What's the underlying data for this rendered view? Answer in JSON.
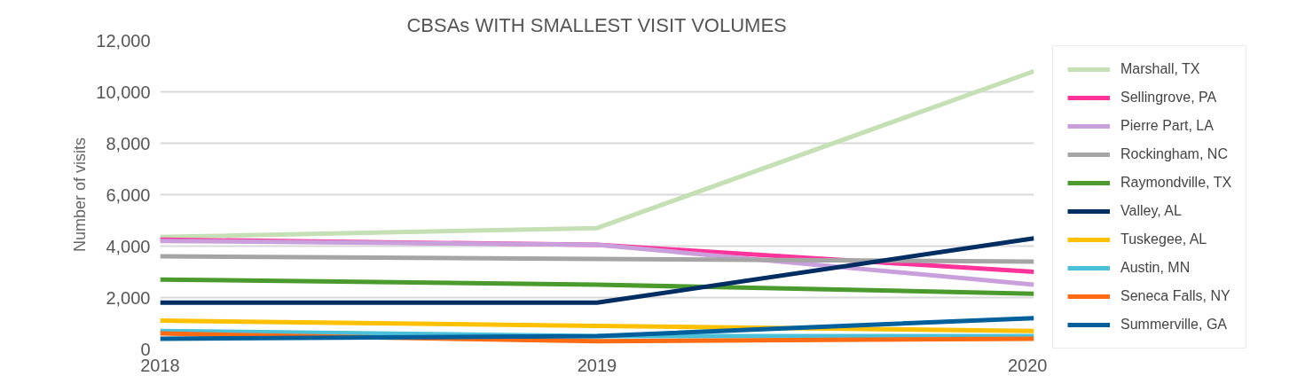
{
  "chart_data": {
    "type": "line",
    "title": "CBSAs WITH SMALLEST VISIT VOLUMES",
    "ylabel": "Number of visits",
    "x": [
      2018,
      2019,
      2020
    ],
    "xlim": [
      2018,
      2020
    ],
    "xticks": [
      2018,
      2019,
      2020
    ],
    "ylim": [
      0,
      12000
    ],
    "yticks": [
      {
        "value": 0,
        "label": "0"
      },
      {
        "value": 2000,
        "label": "2,000"
      },
      {
        "value": 4000,
        "label": "4,000"
      },
      {
        "value": 6000,
        "label": "6,000"
      },
      {
        "value": 8000,
        "label": "8,000"
      },
      {
        "value": 10000,
        "label": "10,000"
      },
      {
        "value": 12000,
        "label": "12,000"
      }
    ],
    "grid": "y",
    "legend": "right",
    "marker": "none",
    "line_style": "solid",
    "series": [
      {
        "name": "Marshall, TX",
        "color": "#c5e0b4",
        "values": [
          4350,
          4700,
          10800
        ]
      },
      {
        "name": "Sellingrove, PA",
        "color": "#ff3399",
        "values": [
          4250,
          4050,
          3000
        ]
      },
      {
        "name": "Pierre Part, LA",
        "color": "#c9a0dc",
        "values": [
          4200,
          4050,
          2500
        ]
      },
      {
        "name": "Rockingham, NC",
        "color": "#a5a5a5",
        "values": [
          3600,
          3500,
          3400
        ]
      },
      {
        "name": "Raymondville, TX",
        "color": "#4a9a2e",
        "values": [
          2700,
          2500,
          2150
        ]
      },
      {
        "name": "Valley, AL",
        "color": "#002d62",
        "values": [
          1800,
          1800,
          4300
        ]
      },
      {
        "name": "Tuskegee, AL",
        "color": "#ffc000",
        "values": [
          1100,
          900,
          700
        ]
      },
      {
        "name": "Austin, MN",
        "color": "#4bc0d9",
        "values": [
          700,
          500,
          500
        ]
      },
      {
        "name": "Seneca Falls, NY",
        "color": "#ff6a13",
        "values": [
          600,
          300,
          400
        ]
      },
      {
        "name": "Summerville, GA",
        "color": "#00609c",
        "values": [
          400,
          500,
          1200
        ]
      }
    ]
  }
}
